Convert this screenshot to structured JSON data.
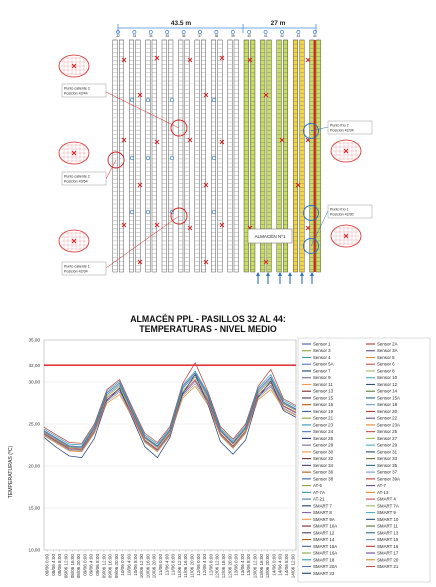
{
  "plan": {
    "dimension_left": "43.5 m",
    "dimension_right": "27 m",
    "aisle_numbers": [
      "32",
      "33",
      "34",
      "35",
      "36",
      "37",
      "38",
      "39",
      "40",
      "41",
      "42",
      "43",
      "44"
    ],
    "callouts": [
      {
        "line1": "Punto caliente 3",
        "line2": "Posición 42/44"
      },
      {
        "line1": "Punto caliente 2",
        "line2": "Posición 43/54"
      },
      {
        "line1": "Punto caliente 1",
        "line2": "Posición 42/34"
      },
      {
        "line1": "Punto frío 2",
        "line2": "Posición 42/34"
      },
      {
        "line1": "Punto frío 1",
        "line2": "Posición 42/30"
      }
    ],
    "warehouse_label": "ALMACÉN Nº1"
  },
  "chart_data": {
    "type": "line",
    "title_line1": "ALMACÉN PPL - PASILLOS 32 AL 44:",
    "title_line2": "TEMPERATURAS - NIVEL MEDIO",
    "ylabel": "TEMPERATURAS (ºC)",
    "ylim": [
      10,
      35
    ],
    "yticks": [
      "35,00",
      "32,00",
      "30,00",
      "25,00",
      "20,00",
      "15,00",
      "10,00"
    ],
    "threshold": {
      "value": 32,
      "label": "32,00",
      "color": "#e0141e"
    },
    "x_labels": [
      "08/06 0:00",
      "08/06 4:00",
      "08/06 8:00",
      "08/06 12:00",
      "08/06 16:00",
      "08/06 20:00",
      "09/06 0:00",
      "09/06 4:00",
      "09/06 8:00",
      "09/06 12:00",
      "09/06 16:00",
      "09/06 20:00",
      "10/06 0:00",
      "10/06 4:00",
      "10/06 8:00",
      "10/06 12:00",
      "10/06 16:00",
      "10/06 20:00",
      "11/06 0:00",
      "11/06 4:00",
      "11/06 8:00",
      "11/06 12:00",
      "11/06 16:00",
      "11/06 20:00",
      "12/06 0:00",
      "12/06 4:00",
      "12/06 8:00",
      "12/06 12:00",
      "12/06 16:00",
      "12/06 20:00",
      "13/06 0:00",
      "13/06 4:00",
      "13/06 8:00",
      "13/06 12:00",
      "13/06 16:00",
      "13/06 20:00",
      "14/06 0:00",
      "14/06 4:00",
      "14/06 8:00",
      "14/06 12:00"
    ],
    "x": [
      0,
      0.05,
      0.1,
      0.15,
      0.2,
      0.25,
      0.3,
      0.35,
      0.4,
      0.45,
      0.5,
      0.55,
      0.6,
      0.65,
      0.7,
      0.75,
      0.8,
      0.85,
      0.9,
      0.95,
      1
    ],
    "series": [
      {
        "name": "Sensor 1",
        "color": "#3e5f9a",
        "values": [
          24.2,
          23.3,
          22.4,
          22.3,
          24.6,
          28.7,
          29.9,
          26.6,
          23.5,
          22.4,
          24.3,
          29.4,
          31.1,
          28.5,
          24.3,
          22.8,
          24.6,
          29.1,
          30.6,
          27.6,
          26.8
        ]
      },
      {
        "name": "Sensor 2A",
        "color": "#b93a32",
        "values": [
          24.6,
          23.7,
          22.8,
          22.7,
          25.0,
          29.1,
          30.3,
          27.0,
          23.9,
          22.8,
          24.7,
          29.8,
          32.3,
          28.9,
          24.7,
          23.2,
          25.0,
          29.5,
          31.5,
          28.0,
          27.2
        ]
      },
      {
        "name": "Sensor 3",
        "color": "#8ca33e",
        "values": [
          24.0,
          23.1,
          22.2,
          22.1,
          24.4,
          28.3,
          29.5,
          26.4,
          23.3,
          22.2,
          24.1,
          28.9,
          30.6,
          28.1,
          24.1,
          22.6,
          24.4,
          28.7,
          30.2,
          27.4,
          26.6
        ]
      },
      {
        "name": "Sensor 3A",
        "color": "#6b4a8e",
        "values": [
          23.8,
          22.9,
          22.0,
          21.9,
          24.1,
          27.9,
          29.0,
          26.1,
          23.0,
          21.9,
          23.8,
          28.5,
          30.1,
          27.7,
          23.8,
          22.3,
          24.1,
          28.3,
          29.6,
          27.1,
          26.3
        ]
      },
      {
        "name": "Sensor 4",
        "color": "#2f9bb3",
        "values": [
          24.4,
          23.5,
          22.6,
          22.5,
          24.8,
          28.9,
          30.1,
          26.8,
          23.7,
          22.6,
          24.5,
          29.6,
          31.3,
          28.7,
          24.5,
          23.0,
          24.8,
          29.3,
          30.9,
          27.8,
          27.0
        ]
      },
      {
        "name": "Sensor 5",
        "color": "#e08a2c",
        "values": [
          23.6,
          22.7,
          21.8,
          21.7,
          23.9,
          27.5,
          28.5,
          25.8,
          22.8,
          21.7,
          23.6,
          28.1,
          29.5,
          27.3,
          23.6,
          22.1,
          23.9,
          27.9,
          29.1,
          26.8,
          26.0
        ]
      },
      {
        "name": "Sensor 5A",
        "color": "#4d79b8",
        "values": [
          24.1,
          23.2,
          22.3,
          22.2,
          24.5,
          28.5,
          29.7,
          26.5,
          23.4,
          22.3,
          24.2,
          29.2,
          30.9,
          28.3,
          24.2,
          22.7,
          24.5,
          28.9,
          30.4,
          27.5,
          26.7
        ]
      },
      {
        "name": "Sensor 6",
        "color": "#c6504c",
        "values": [
          23.9,
          23.0,
          22.1,
          22.0,
          24.2,
          28.1,
          29.2,
          26.2,
          23.1,
          22.0,
          23.9,
          28.7,
          30.3,
          27.9,
          23.9,
          22.4,
          24.2,
          28.5,
          29.9,
          27.2,
          26.4
        ]
      },
      {
        "name": "Sensor 7",
        "color": "#1c3f73",
        "values": [
          23.4,
          22.2,
          21.2,
          21.0,
          23.3,
          27.8,
          29.3,
          25.7,
          22.3,
          21.0,
          23.4,
          28.6,
          30.9,
          27.4,
          22.9,
          21.4,
          23.1,
          28.2,
          30.1,
          26.6,
          25.8
        ]
      },
      {
        "name": "AT-7",
        "color": "#9a9a9a",
        "values": [
          23.7,
          22.8,
          21.9,
          21.8,
          24.0,
          27.7,
          28.8,
          25.9,
          22.9,
          21.8,
          23.7,
          28.3,
          29.8,
          27.5,
          23.7,
          22.2,
          24.0,
          28.1,
          29.4,
          26.9,
          26.1
        ]
      }
    ],
    "legend": [
      "Sensor 1",
      "Sensor 2A",
      "Sensor 3",
      "Sensor 3A",
      "Sensor 4",
      "Sensor 5",
      "Sensor 5A",
      "Sensor 6",
      "Sensor 7",
      "Sensor 8",
      "Sensor 9",
      "Sensor 10",
      "Sensor 11",
      "Sensor 12",
      "Sensor 13",
      "Sensor 14",
      "Sensor 15",
      "Sensor 15A",
      "Sensor 16",
      "Sensor 18",
      "Sensor 19",
      "Sensor 20",
      "Sensor 21",
      "Sensor 22",
      "Sensor 23",
      "Sensor 23A",
      "Sensor 24",
      "Sensor 25",
      "Sensor 26",
      "Sensor 27",
      "Sensor 28",
      "Sensor 29",
      "Sensor 30",
      "Sensor 31",
      "Sensor 32",
      "Sensor 33",
      "Sensor 34",
      "Sensor 35",
      "Sensor 36",
      "Sensor 37",
      "Sensor 38",
      "Sensor 39A",
      "AT-6",
      "AT-7",
      "AT-7A",
      "AT-13",
      "AT-21",
      "SMART 4",
      "SMART 7",
      "SMART 7A",
      "SMART 8",
      "SMART 9",
      "SMART 9A",
      "SMART 10",
      "SMART 10A",
      "SMART 11",
      "SMART 12",
      "SMART 13",
      "SMART 14",
      "SMART 15",
      "SMART 15A",
      "SMART 16",
      "SMART 16A",
      "SMART 17",
      "SMART 18",
      "SMART 20",
      "SMART 20A",
      "SMART 21",
      "SMART 23"
    ],
    "legend_colors": [
      "#3e5f9a",
      "#b93a32",
      "#8ca33e",
      "#6b4a8e",
      "#2f9bb3",
      "#e08a2c",
      "#4d79b8",
      "#c6504c",
      "#1c3f73",
      "#9bbb59",
      "#8064a2",
      "#4bacc6",
      "#f79646",
      "#2c4d75",
      "#772c2a",
      "#5f7530",
      "#4d3b62",
      "#276a7c",
      "#b65708",
      "#729aca"
    ]
  }
}
